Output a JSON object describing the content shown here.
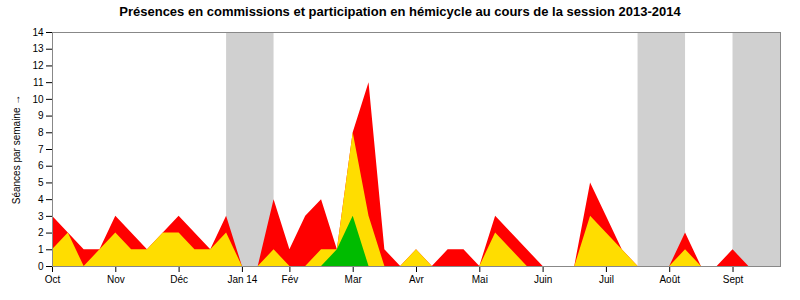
{
  "chart_data": {
    "type": "area",
    "title": "Présences en commissions et participation en hémicycle au cours de la session 2013-2014",
    "y_label": "Séances par semaine",
    "stacked": false,
    "x": [
      0,
      1,
      2,
      3,
      4,
      5,
      6,
      7,
      8,
      9,
      10,
      11,
      12,
      13,
      14,
      15,
      16,
      17,
      18,
      19,
      20,
      21,
      22,
      23,
      24,
      25,
      26,
      27,
      28,
      29,
      30,
      31,
      32,
      33,
      34,
      35,
      36,
      37,
      38,
      39,
      40,
      41,
      42,
      43,
      44,
      45,
      46
    ],
    "xlim": [
      0,
      46
    ],
    "xticks": [
      {
        "value": 0,
        "label": "Oct"
      },
      {
        "value": 4,
        "label": "Nov"
      },
      {
        "value": 8,
        "label": "Déc"
      },
      {
        "value": 12,
        "label": "Jan 14"
      },
      {
        "value": 15,
        "label": "Fév"
      },
      {
        "value": 19,
        "label": "Mar"
      },
      {
        "value": 23,
        "label": "Avr"
      },
      {
        "value": 27,
        "label": "Mai"
      },
      {
        "value": 31,
        "label": "Juin"
      },
      {
        "value": 35,
        "label": "Juil"
      },
      {
        "value": 39,
        "label": "Août"
      },
      {
        "value": 43,
        "label": "Sept"
      }
    ],
    "ylim": [
      0,
      14
    ],
    "yticks": [
      0,
      1,
      2,
      3,
      4,
      5,
      6,
      7,
      8,
      9,
      10,
      11,
      12,
      13,
      14
    ],
    "bands": {
      "color": "#aaaaaa",
      "ranges": [
        [
          11,
          14
        ],
        [
          37,
          40
        ],
        [
          43,
          46
        ]
      ]
    },
    "series": [
      {
        "color": "#ff0000",
        "values": [
          3,
          2,
          1,
          1,
          3,
          2,
          1,
          2,
          3,
          2,
          1,
          3,
          0,
          0,
          4,
          1,
          3,
          4,
          1,
          8,
          11,
          1,
          0,
          1,
          0,
          1,
          1,
          0,
          3,
          2,
          1,
          0,
          0,
          0,
          5,
          3,
          1,
          0,
          0,
          0,
          2,
          0,
          0,
          1,
          0,
          0,
          0
        ]
      },
      {
        "color": "#ffdd00",
        "values": [
          1,
          2,
          0,
          1,
          2,
          1,
          1,
          2,
          2,
          1,
          1,
          2,
          0,
          0,
          1,
          0,
          0,
          1,
          1,
          8,
          3,
          0,
          0,
          1,
          0,
          0,
          0,
          0,
          2,
          1,
          0,
          0,
          0,
          0,
          3,
          2,
          1,
          0,
          0,
          0,
          1,
          0,
          0,
          0,
          0,
          0,
          0
        ]
      },
      {
        "color": "#00bb00",
        "values": [
          0,
          0,
          0,
          0,
          0,
          0,
          0,
          0,
          0,
          0,
          0,
          0,
          0,
          0,
          0,
          0,
          0,
          0,
          1,
          3,
          0,
          0,
          0,
          0,
          0,
          0,
          0,
          0,
          0,
          0,
          0,
          0,
          0,
          0,
          0,
          0,
          0,
          0,
          0,
          0,
          0,
          0,
          0,
          0,
          0,
          0,
          0
        ]
      }
    ]
  }
}
